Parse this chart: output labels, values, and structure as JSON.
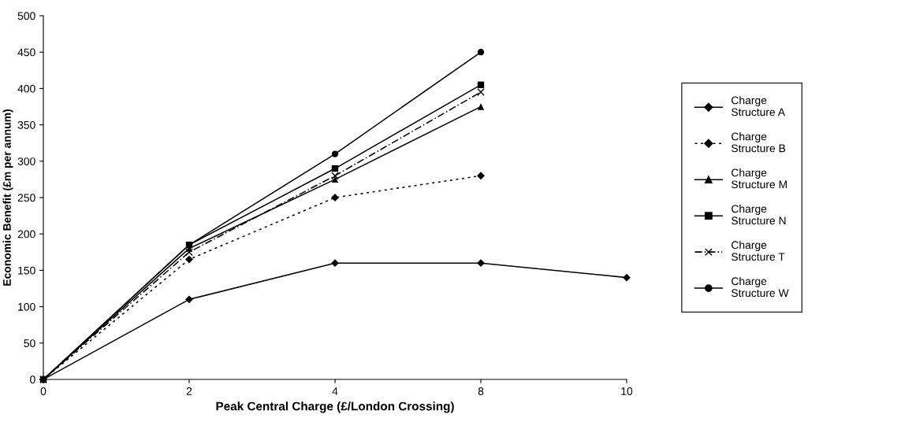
{
  "chart_data": {
    "type": "line",
    "xlabel": "Peak Central Charge (£/London Crossing)",
    "ylabel": "Economic Benefit (£m per annum)",
    "categories": [
      "0",
      "2",
      "4",
      "8",
      "10"
    ],
    "series": [
      {
        "name": "Charge Structure A",
        "color": "#000000",
        "values": [
          0,
          110,
          160,
          160,
          140
        ],
        "marker": "diamond",
        "line_style": "solid"
      },
      {
        "name": "Charge Structure B",
        "color": "#000000",
        "values": [
          0,
          165,
          250,
          280,
          null
        ],
        "marker": "diamond",
        "line_style": "dotted"
      },
      {
        "name": "Charge Structure M",
        "color": "#000000",
        "values": [
          0,
          180,
          275,
          375,
          null
        ],
        "marker": "triangle",
        "line_style": "solid"
      },
      {
        "name": "Charge Structure N",
        "color": "#000000",
        "values": [
          0,
          185,
          290,
          405,
          null
        ],
        "marker": "square",
        "line_style": "solid"
      },
      {
        "name": "Charge Structure T",
        "color": "#000000",
        "values": [
          0,
          175,
          280,
          395,
          null
        ],
        "marker": "cross",
        "line_style": "dashed"
      },
      {
        "name": "Charge Structure W",
        "color": "#000000",
        "values": [
          0,
          185,
          310,
          450,
          null
        ],
        "marker": "circle",
        "line_style": "solid"
      }
    ],
    "ylim": [
      0,
      500
    ],
    "yticks": [
      0,
      50,
      100,
      150,
      200,
      250,
      300,
      350,
      400,
      450,
      500
    ],
    "grid": false,
    "legend": "right"
  }
}
